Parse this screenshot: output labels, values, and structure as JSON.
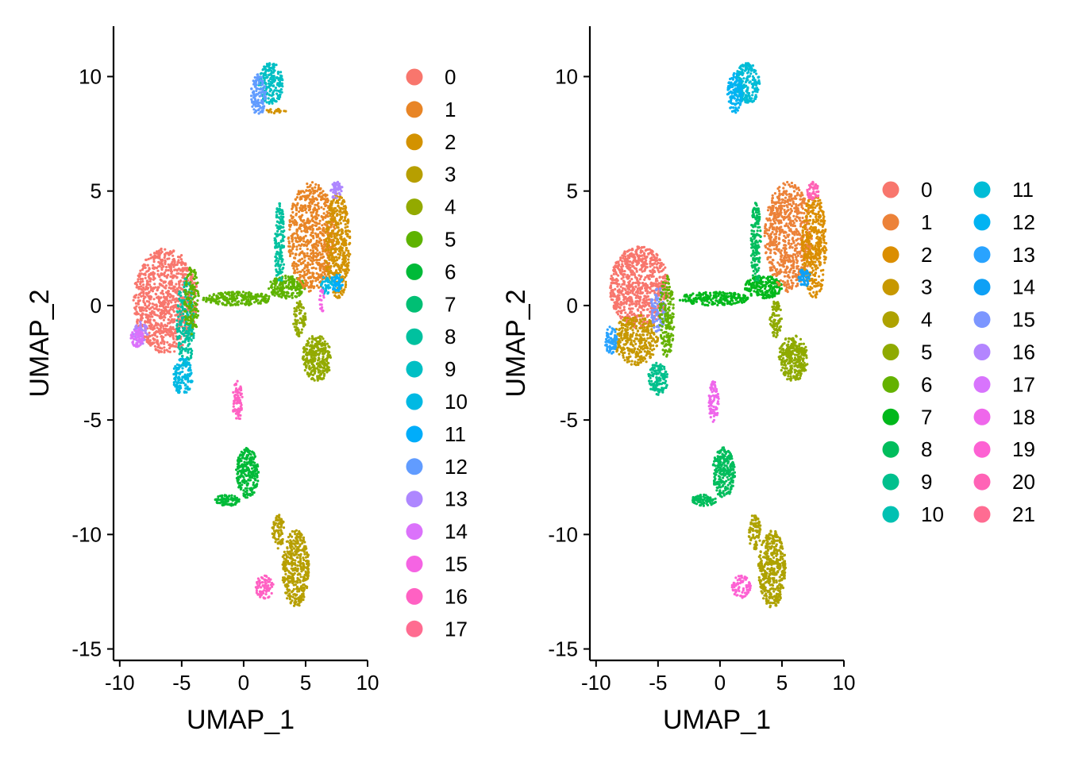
{
  "chart_data": [
    {
      "type": "scatter",
      "xlabel": "UMAP_1",
      "ylabel": "UMAP_2",
      "xlim": [
        -10.5,
        10.0
      ],
      "ylim": [
        -15.5,
        12.2
      ],
      "xticks": [
        -10,
        -5,
        0,
        5,
        10
      ],
      "yticks": [
        -15,
        -10,
        -5,
        0,
        5,
        10
      ],
      "legend_position": "right",
      "legend_columns": 1,
      "clusters": [
        {
          "label": "0",
          "color": "#F8766D"
        },
        {
          "label": "1",
          "color": "#E88526"
        },
        {
          "label": "2",
          "color": "#D39200"
        },
        {
          "label": "3",
          "color": "#B79F00"
        },
        {
          "label": "4",
          "color": "#93AA00"
        },
        {
          "label": "5",
          "color": "#5EB300"
        },
        {
          "label": "6",
          "color": "#00BA38"
        },
        {
          "label": "7",
          "color": "#00BF74"
        },
        {
          "label": "8",
          "color": "#00C19F"
        },
        {
          "label": "9",
          "color": "#00BFC4"
        },
        {
          "label": "10",
          "color": "#00B9E3"
        },
        {
          "label": "11",
          "color": "#00ADFA"
        },
        {
          "label": "12",
          "color": "#619CFF"
        },
        {
          "label": "13",
          "color": "#AE87FF"
        },
        {
          "label": "14",
          "color": "#DB72FB"
        },
        {
          "label": "15",
          "color": "#F564E3"
        },
        {
          "label": "16",
          "color": "#FF61C3"
        },
        {
          "label": "17",
          "color": "#FF6C91"
        }
      ],
      "regions": [
        {
          "cluster": "0",
          "cx": -6.3,
          "cy": 0.2,
          "rx": 2.6,
          "ry": 2.3,
          "n": 1000
        },
        {
          "cluster": "13",
          "cx": -8.3,
          "cy": -1.2,
          "rx": 0.6,
          "ry": 0.5,
          "n": 50
        },
        {
          "cluster": "14",
          "cx": -8.6,
          "cy": -1.4,
          "rx": 0.5,
          "ry": 0.4,
          "n": 60
        },
        {
          "cluster": "8",
          "cx": -4.7,
          "cy": -0.8,
          "rx": 0.7,
          "ry": 2.0,
          "n": 200
        },
        {
          "cluster": "10",
          "cx": -4.9,
          "cy": -3.1,
          "rx": 0.8,
          "ry": 0.8,
          "n": 150
        },
        {
          "cluster": "5",
          "cx": -4.2,
          "cy": 0.2,
          "rx": 0.6,
          "ry": 1.5,
          "n": 120
        },
        {
          "cluster": "5",
          "cx": -0.5,
          "cy": 0.3,
          "rx": 2.8,
          "ry": 0.3,
          "n": 220
        },
        {
          "cluster": "5",
          "cx": 3.5,
          "cy": 0.8,
          "rx": 1.5,
          "ry": 0.5,
          "n": 200
        },
        {
          "cluster": "1",
          "cx": 5.5,
          "cy": 3.0,
          "rx": 1.9,
          "ry": 2.4,
          "n": 700
        },
        {
          "cluster": "2",
          "cx": 7.6,
          "cy": 2.6,
          "rx": 1.0,
          "ry": 2.3,
          "n": 400
        },
        {
          "cluster": "8",
          "cx": 2.9,
          "cy": 2.7,
          "rx": 0.4,
          "ry": 1.8,
          "n": 150
        },
        {
          "cluster": "13",
          "cx": 7.5,
          "cy": 5.0,
          "rx": 0.5,
          "ry": 0.4,
          "n": 50
        },
        {
          "cluster": "11",
          "cx": 7.5,
          "cy": 1.0,
          "rx": 0.5,
          "ry": 0.4,
          "n": 60
        },
        {
          "cluster": "10",
          "cx": 6.7,
          "cy": 0.9,
          "rx": 0.5,
          "ry": 0.4,
          "n": 40
        },
        {
          "cluster": "4",
          "cx": 5.9,
          "cy": -2.3,
          "rx": 1.2,
          "ry": 1.0,
          "n": 300
        },
        {
          "cluster": "4",
          "cx": 4.5,
          "cy": -0.6,
          "rx": 0.5,
          "ry": 0.8,
          "n": 80
        },
        {
          "cluster": "15",
          "cx": 6.3,
          "cy": 0.2,
          "rx": 0.2,
          "ry": 0.5,
          "n": 20
        },
        {
          "cluster": "9",
          "cx": 2.2,
          "cy": 9.7,
          "rx": 1.0,
          "ry": 0.9,
          "n": 200
        },
        {
          "cluster": "12",
          "cx": 1.2,
          "cy": 9.2,
          "rx": 0.6,
          "ry": 0.9,
          "n": 120
        },
        {
          "cluster": "2",
          "cx": 2.6,
          "cy": 8.5,
          "rx": 0.8,
          "ry": 0.1,
          "n": 20
        },
        {
          "cluster": "16",
          "cx": -0.5,
          "cy": -4.2,
          "rx": 0.4,
          "ry": 0.9,
          "n": 80
        },
        {
          "cluster": "6",
          "cx": 0.3,
          "cy": -7.3,
          "rx": 0.9,
          "ry": 1.1,
          "n": 250
        },
        {
          "cluster": "6",
          "cx": -1.3,
          "cy": -8.5,
          "rx": 1.0,
          "ry": 0.25,
          "n": 80
        },
        {
          "cluster": "3",
          "cx": 4.2,
          "cy": -11.5,
          "rx": 1.1,
          "ry": 1.7,
          "n": 400
        },
        {
          "cluster": "3",
          "cx": 2.8,
          "cy": -9.9,
          "rx": 0.5,
          "ry": 0.8,
          "n": 80
        },
        {
          "cluster": "16",
          "cx": 1.7,
          "cy": -12.3,
          "rx": 0.8,
          "ry": 0.5,
          "n": 80
        }
      ]
    },
    {
      "type": "scatter",
      "xlabel": "UMAP_1",
      "ylabel": "UMAP_2",
      "xlim": [
        -10.5,
        10.0
      ],
      "ylim": [
        -15.5,
        12.2
      ],
      "xticks": [
        -10,
        -5,
        0,
        5,
        10
      ],
      "yticks": [
        -15,
        -10,
        -5,
        0,
        5,
        10
      ],
      "legend_position": "right",
      "legend_columns": 2,
      "clusters": [
        {
          "label": "0",
          "color": "#F8766D"
        },
        {
          "label": "1",
          "color": "#EC8239"
        },
        {
          "label": "2",
          "color": "#DB8E00"
        },
        {
          "label": "3",
          "color": "#C79800"
        },
        {
          "label": "4",
          "color": "#AEA200"
        },
        {
          "label": "5",
          "color": "#8FAA00"
        },
        {
          "label": "6",
          "color": "#64B200"
        },
        {
          "label": "7",
          "color": "#00B81B"
        },
        {
          "label": "8",
          "color": "#00BD5C"
        },
        {
          "label": "9",
          "color": "#00C08D"
        },
        {
          "label": "10",
          "color": "#00C1B2"
        },
        {
          "label": "11",
          "color": "#00BCD6"
        },
        {
          "label": "12",
          "color": "#00B3F2"
        },
        {
          "label": "13",
          "color": "#29A3FF"
        },
        {
          "label": "14",
          "color": "#0EA0F5"
        },
        {
          "label": "15",
          "color": "#7C96FF"
        },
        {
          "label": "16",
          "color": "#B385FF"
        },
        {
          "label": "17",
          "color": "#D874FD"
        },
        {
          "label": "18",
          "color": "#EF67EB"
        },
        {
          "label": "19",
          "color": "#FD61D3"
        },
        {
          "label": "20",
          "color": "#FF63B6"
        },
        {
          "label": "21",
          "color": "#FF6C92"
        }
      ],
      "regions": [
        {
          "cluster": "0",
          "cx": -6.5,
          "cy": 0.8,
          "rx": 2.4,
          "ry": 1.8,
          "n": 800
        },
        {
          "cluster": "3",
          "cx": -6.8,
          "cy": -1.5,
          "rx": 1.8,
          "ry": 1.1,
          "n": 350
        },
        {
          "cluster": "13",
          "cx": -8.8,
          "cy": -1.5,
          "rx": 0.5,
          "ry": 0.6,
          "n": 80
        },
        {
          "cluster": "15",
          "cx": -5.0,
          "cy": -0.2,
          "rx": 0.6,
          "ry": 1.0,
          "n": 90
        },
        {
          "cluster": "6",
          "cx": -4.3,
          "cy": -0.5,
          "rx": 0.6,
          "ry": 1.8,
          "n": 180
        },
        {
          "cluster": "9",
          "cx": -5.0,
          "cy": -3.2,
          "rx": 0.8,
          "ry": 0.7,
          "n": 130
        },
        {
          "cluster": "7",
          "cx": -0.5,
          "cy": 0.3,
          "rx": 2.8,
          "ry": 0.3,
          "n": 220
        },
        {
          "cluster": "7",
          "cx": 3.5,
          "cy": 0.8,
          "rx": 1.5,
          "ry": 0.5,
          "n": 200
        },
        {
          "cluster": "1",
          "cx": 5.5,
          "cy": 3.0,
          "rx": 1.9,
          "ry": 2.4,
          "n": 700
        },
        {
          "cluster": "2",
          "cx": 7.6,
          "cy": 2.6,
          "rx": 1.0,
          "ry": 2.3,
          "n": 400
        },
        {
          "cluster": "8",
          "cx": 2.9,
          "cy": 2.7,
          "rx": 0.4,
          "ry": 1.8,
          "n": 150
        },
        {
          "cluster": "20",
          "cx": 7.5,
          "cy": 5.0,
          "rx": 0.5,
          "ry": 0.4,
          "n": 50
        },
        {
          "cluster": "14",
          "cx": 6.8,
          "cy": 1.2,
          "rx": 0.5,
          "ry": 0.4,
          "n": 50
        },
        {
          "cluster": "5",
          "cx": 5.9,
          "cy": -2.3,
          "rx": 1.2,
          "ry": 1.0,
          "n": 300
        },
        {
          "cluster": "5",
          "cx": 4.5,
          "cy": -0.6,
          "rx": 0.5,
          "ry": 0.8,
          "n": 80
        },
        {
          "cluster": "11",
          "cx": 2.2,
          "cy": 9.7,
          "rx": 1.0,
          "ry": 0.9,
          "n": 200
        },
        {
          "cluster": "12",
          "cx": 1.2,
          "cy": 9.3,
          "rx": 0.6,
          "ry": 0.9,
          "n": 120
        },
        {
          "cluster": "18",
          "cx": -0.5,
          "cy": -4.2,
          "rx": 0.4,
          "ry": 0.9,
          "n": 80
        },
        {
          "cluster": "8",
          "cx": 0.3,
          "cy": -7.3,
          "rx": 0.9,
          "ry": 1.1,
          "n": 250
        },
        {
          "cluster": "8",
          "cx": -1.3,
          "cy": -8.5,
          "rx": 1.0,
          "ry": 0.25,
          "n": 80
        },
        {
          "cluster": "4",
          "cx": 4.2,
          "cy": -11.5,
          "rx": 1.1,
          "ry": 1.7,
          "n": 400
        },
        {
          "cluster": "4",
          "cx": 2.8,
          "cy": -9.9,
          "rx": 0.5,
          "ry": 0.8,
          "n": 80
        },
        {
          "cluster": "19",
          "cx": 1.7,
          "cy": -12.3,
          "rx": 0.8,
          "ry": 0.5,
          "n": 80
        }
      ]
    }
  ]
}
